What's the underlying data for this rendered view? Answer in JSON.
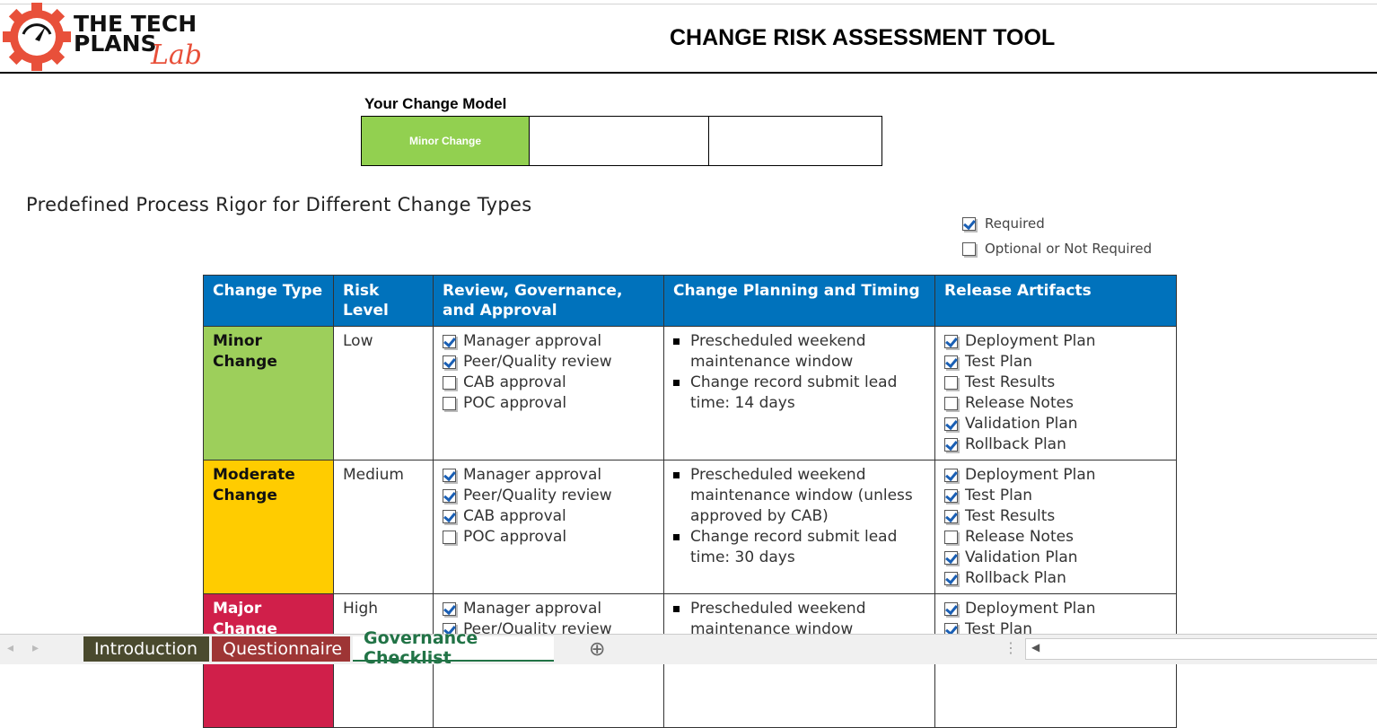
{
  "header": {
    "logo_line1": "THE TECH",
    "logo_line2": "PLANS",
    "logo_script": "Lab",
    "title": "CHANGE RISK ASSESSMENT TOOL"
  },
  "change_model": {
    "label": "Your Change Model",
    "value": "Minor Change"
  },
  "section_title": "Predefined Process Rigor for Different Change Types",
  "legend": {
    "required": "Required",
    "optional": "Optional or Not Required"
  },
  "colors": {
    "header": "#0072bc",
    "minor": "#92d050",
    "moderate": "#ffcc00",
    "major": "#d01f4a"
  },
  "table": {
    "headers": [
      "Change Type",
      "Risk Level",
      "Review, Governance, and Approval",
      "Change Planning and Timing",
      "Release Artifacts"
    ],
    "rows": [
      {
        "type": "Minor Change",
        "risk": "Low",
        "color": "#9dcf5b",
        "text_color": "#111",
        "review": [
          {
            "label": "Manager approval",
            "checked": true
          },
          {
            "label": "Peer/Quality review",
            "checked": true
          },
          {
            "label": "CAB approval",
            "checked": false
          },
          {
            "label": "POC approval",
            "checked": false
          }
        ],
        "planning": [
          "Prescheduled weekend maintenance window",
          "Change record submit lead time: 14 days"
        ],
        "artifacts": [
          {
            "label": "Deployment Plan",
            "checked": true
          },
          {
            "label": "Test Plan",
            "checked": true
          },
          {
            "label": "Test Results",
            "checked": false
          },
          {
            "label": "Release Notes",
            "checked": false
          },
          {
            "label": "Validation Plan",
            "checked": true
          },
          {
            "label": "Rollback Plan",
            "checked": true
          }
        ]
      },
      {
        "type": "Moderate Change",
        "risk": "Medium",
        "color": "#ffcc00",
        "text_color": "#111",
        "review": [
          {
            "label": "Manager approval",
            "checked": true
          },
          {
            "label": "Peer/Quality review",
            "checked": true
          },
          {
            "label": "CAB approval",
            "checked": true
          },
          {
            "label": "POC approval",
            "checked": false
          }
        ],
        "planning": [
          "Prescheduled weekend maintenance window (unless approved by CAB)",
          "Change record submit lead time: 30 days"
        ],
        "artifacts": [
          {
            "label": "Deployment Plan",
            "checked": true
          },
          {
            "label": "Test Plan",
            "checked": true
          },
          {
            "label": "Test Results",
            "checked": true
          },
          {
            "label": "Release Notes",
            "checked": false
          },
          {
            "label": "Validation Plan",
            "checked": true
          },
          {
            "label": "Rollback Plan",
            "checked": true
          }
        ]
      },
      {
        "type": "Major Change",
        "risk": "High",
        "color": "#d01f4a",
        "text_color": "#fff",
        "review": [
          {
            "label": "Manager approval",
            "checked": true
          },
          {
            "label": "Peer/Quality review",
            "checked": true
          }
        ],
        "planning": [
          "Prescheduled weekend maintenance window"
        ],
        "artifacts": [
          {
            "label": "Deployment Plan",
            "checked": true
          },
          {
            "label": "Test Plan",
            "checked": true
          }
        ]
      }
    ]
  },
  "sheet_tabs": [
    {
      "label": "Introduction",
      "bg": "#4a4a2e",
      "fg": "#fff"
    },
    {
      "label": "Questionnaire",
      "bg": "#9e3535",
      "fg": "#fff"
    },
    {
      "label": "Governance Checklist",
      "bg": "#ffffff",
      "fg": "#217346",
      "active": true
    }
  ]
}
